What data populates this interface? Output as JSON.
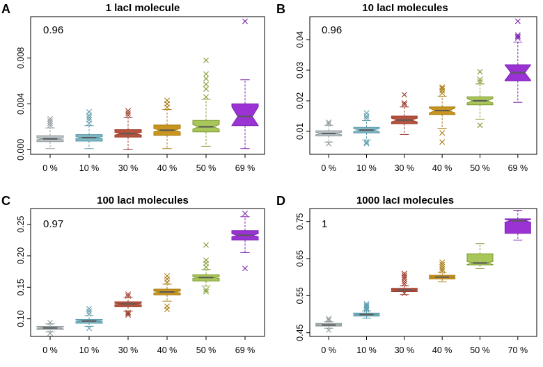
{
  "chart_data": [
    {
      "type": "box",
      "panel_label": "A",
      "title": "1 lacI molecule",
      "annotation": "0.96",
      "xlabel": "",
      "ylabel": "",
      "ylim": [
        -0.0004,
        0.0116
      ],
      "yticks": [
        0.0,
        0.004,
        0.008
      ],
      "ytick_labels": [
        "0.000",
        "0.004",
        "0.008"
      ],
      "categories": [
        "0  %",
        "10  %",
        "30  %",
        "40  %",
        "50  %",
        "69  %"
      ],
      "colors": [
        "#b9c3c6",
        "#7fb6c4",
        "#b5533f",
        "#c8951f",
        "#a8c65a",
        "#9a32d4"
      ],
      "outlier_colors": [
        "#8f9a9c",
        "#5a9aaa",
        "#9c3e2c",
        "#a87a10",
        "#7f9a30",
        "#7b22b0"
      ],
      "boxes": [
        {
          "whislo": 0.0001,
          "q1": 0.0007,
          "med": 0.00095,
          "q3": 0.00122,
          "whishi": 0.0019,
          "notch_half": 8e-05,
          "fliers": [
            0.0021,
            0.0023,
            0.0025,
            0.0027
          ]
        },
        {
          "whislo": 0.0001,
          "q1": 0.00075,
          "med": 0.00105,
          "q3": 0.00132,
          "whishi": 0.0021,
          "notch_half": 9e-05,
          "fliers": [
            0.0023,
            0.0026,
            0.0028,
            0.003,
            0.0033
          ]
        },
        {
          "whislo": 0.0,
          "q1": 0.0011,
          "med": 0.0014,
          "q3": 0.00175,
          "whishi": 0.0028,
          "notch_half": 0.00012,
          "fliers": [
            0.003,
            0.0032,
            0.0034
          ]
        },
        {
          "whislo": 0.0001,
          "q1": 0.00125,
          "med": 0.0017,
          "q3": 0.00215,
          "whishi": 0.0035,
          "notch_half": 0.00015,
          "fliers": [
            0.0037,
            0.004,
            0.0043
          ]
        },
        {
          "whislo": 0.0003,
          "q1": 0.00155,
          "med": 0.002,
          "q3": 0.00255,
          "whishi": 0.0044,
          "notch_half": 0.0002,
          "fliers": [
            0.0046,
            0.0053,
            0.0057,
            0.0062,
            0.0066,
            0.0078
          ]
        },
        {
          "whislo": 0.0001,
          "q1": 0.0021,
          "med": 0.0029,
          "q3": 0.004,
          "whishi": 0.0061,
          "notch_half": 0.00085,
          "fliers": [
            0.0112
          ]
        }
      ]
    },
    {
      "type": "box",
      "panel_label": "B",
      "title": "10 lacI molecules",
      "annotation": "0.96",
      "xlabel": "",
      "ylabel": "",
      "ylim": [
        0.0025,
        0.0475
      ],
      "yticks": [
        0.01,
        0.02,
        0.03,
        0.04
      ],
      "ytick_labels": [
        "0.01",
        "0.02",
        "0.03",
        "0.04"
      ],
      "categories": [
        "0  %",
        "10  %",
        "30  %",
        "40  %",
        "50  %",
        "69  %"
      ],
      "colors": [
        "#b9c3c6",
        "#7fb6c4",
        "#b5533f",
        "#c8951f",
        "#a8c65a",
        "#9a32d4"
      ],
      "outlier_colors": [
        "#8f9a9c",
        "#5a9aaa",
        "#9c3e2c",
        "#a87a10",
        "#7f9a30",
        "#7b22b0"
      ],
      "boxes": [
        {
          "whislo": 0.0065,
          "q1": 0.0085,
          "med": 0.0093,
          "q3": 0.0102,
          "whishi": 0.012,
          "notch_half": 0.0004,
          "fliers": [
            0.006,
            0.0125,
            0.013
          ]
        },
        {
          "whislo": 0.0072,
          "q1": 0.0095,
          "med": 0.0104,
          "q3": 0.0113,
          "whishi": 0.0135,
          "notch_half": 0.0005,
          "fliers": [
            0.006,
            0.0065,
            0.0143,
            0.015,
            0.016
          ]
        },
        {
          "whislo": 0.009,
          "q1": 0.0125,
          "med": 0.0137,
          "q3": 0.015,
          "whishi": 0.018,
          "notch_half": 0.0006,
          "fliers": [
            0.0188,
            0.0193,
            0.022
          ]
        },
        {
          "whislo": 0.011,
          "q1": 0.0155,
          "med": 0.0168,
          "q3": 0.018,
          "whishi": 0.0215,
          "notch_half": 0.0008,
          "fliers": [
            0.0065,
            0.0095,
            0.0225,
            0.0233,
            0.024,
            0.0245
          ]
        },
        {
          "whislo": 0.014,
          "q1": 0.0187,
          "med": 0.02,
          "q3": 0.0213,
          "whishi": 0.0255,
          "notch_half": 0.0007,
          "fliers": [
            0.012,
            0.0262,
            0.027,
            0.0295
          ]
        },
        {
          "whislo": 0.0195,
          "q1": 0.0265,
          "med": 0.0292,
          "q3": 0.0318,
          "whishi": 0.0392,
          "notch_half": 0.0025,
          "fliers": [
            0.0405,
            0.041,
            0.0415,
            0.046
          ]
        }
      ]
    },
    {
      "type": "box",
      "panel_label": "C",
      "title": "100 lacI molecules",
      "annotation": "0.97",
      "xlabel": "",
      "ylabel": "",
      "ylim": [
        0.072,
        0.275
      ],
      "yticks": [
        0.1,
        0.15,
        0.2,
        0.25
      ],
      "ytick_labels": [
        "0.10",
        "0.15",
        "0.20",
        "0.25"
      ],
      "categories": [
        "0  %",
        "10  %",
        "30  %",
        "40  %",
        "50  %",
        "69  %"
      ],
      "colors": [
        "#b9c3c6",
        "#7fb6c4",
        "#b5533f",
        "#c8951f",
        "#a8c65a",
        "#9a32d4"
      ],
      "outlier_colors": [
        "#8f9a9c",
        "#5a9aaa",
        "#9c3e2c",
        "#a87a10",
        "#7f9a30",
        "#7b22b0"
      ],
      "boxes": [
        {
          "whislo": 0.079,
          "q1": 0.083,
          "med": 0.0855,
          "q3": 0.088,
          "whishi": 0.092,
          "notch_half": 0.0012,
          "fliers": [
            0.077,
            0.094
          ]
        },
        {
          "whislo": 0.088,
          "q1": 0.093,
          "med": 0.0965,
          "q3": 0.099,
          "whishi": 0.105,
          "notch_half": 0.0012,
          "fliers": [
            0.085,
            0.108,
            0.112,
            0.116
          ]
        },
        {
          "whislo": 0.112,
          "q1": 0.119,
          "med": 0.1235,
          "q3": 0.127,
          "whishi": 0.134,
          "notch_half": 0.0012,
          "fliers": [
            0.106,
            0.108,
            0.11,
            0.136,
            0.139
          ]
        },
        {
          "whislo": 0.128,
          "q1": 0.138,
          "med": 0.1425,
          "q3": 0.147,
          "whishi": 0.155,
          "notch_half": 0.0015,
          "fliers": [
            0.115,
            0.12,
            0.158,
            0.163,
            0.168
          ]
        },
        {
          "whislo": 0.152,
          "q1": 0.16,
          "med": 0.1655,
          "q3": 0.17,
          "whishi": 0.178,
          "notch_half": 0.0014,
          "fliers": [
            0.143,
            0.146,
            0.182,
            0.188,
            0.193,
            0.217
          ]
        },
        {
          "whislo": 0.205,
          "q1": 0.225,
          "med": 0.2325,
          "q3": 0.24,
          "whishi": 0.262,
          "notch_half": 0.0025,
          "fliers": [
            0.18,
            0.267
          ]
        }
      ]
    },
    {
      "type": "box",
      "panel_label": "D",
      "title": "1000 lacI molecules",
      "annotation": "1",
      "xlabel": "",
      "ylabel": "",
      "ylim": [
        0.44,
        0.785
      ],
      "yticks": [
        0.45,
        0.55,
        0.65,
        0.75
      ],
      "ytick_labels": [
        "0.45",
        "0.55",
        "0.65",
        "0.75"
      ],
      "categories": [
        "0  %",
        "10  %",
        "30  %",
        "40  %",
        "50  %",
        "70  %"
      ],
      "colors": [
        "#b9c3c6",
        "#7fb6c4",
        "#b5533f",
        "#c8951f",
        "#a8c65a",
        "#9a32d4"
      ],
      "outlier_colors": [
        "#8f9a9c",
        "#5a9aaa",
        "#9c3e2c",
        "#a87a10",
        "#7f9a30",
        "#7b22b0"
      ],
      "boxes": [
        {
          "whislo": 0.462,
          "q1": 0.468,
          "med": 0.471,
          "q3": 0.475,
          "whishi": 0.48,
          "notch_half": 0.0012,
          "fliers": [
            0.457,
            0.484,
            0.488
          ]
        },
        {
          "whislo": 0.489,
          "q1": 0.495,
          "med": 0.499,
          "q3": 0.503,
          "whishi": 0.509,
          "notch_half": 0.0012,
          "fliers": [
            0.512,
            0.516,
            0.52,
            0.524,
            0.528
          ]
        },
        {
          "whislo": 0.553,
          "q1": 0.561,
          "med": 0.565,
          "q3": 0.57,
          "whishi": 0.577,
          "notch_half": 0.0012,
          "fliers": [
            0.556,
            0.582,
            0.588,
            0.595,
            0.6,
            0.605,
            0.61
          ]
        },
        {
          "whislo": 0.587,
          "q1": 0.595,
          "med": 0.6,
          "q3": 0.605,
          "whishi": 0.613,
          "notch_half": 0.0014,
          "fliers": [
            0.617,
            0.622,
            0.628,
            0.634,
            0.64
          ]
        },
        {
          "whislo": 0.623,
          "q1": 0.633,
          "med": 0.638,
          "q3": 0.663,
          "whishi": 0.69,
          "notch_half": 0.004,
          "fliers": []
        },
        {
          "whislo": 0.7,
          "q1": 0.718,
          "med": 0.752,
          "q3": 0.757,
          "whishi": 0.78,
          "notch_half": 0.004,
          "fliers": []
        }
      ]
    }
  ]
}
